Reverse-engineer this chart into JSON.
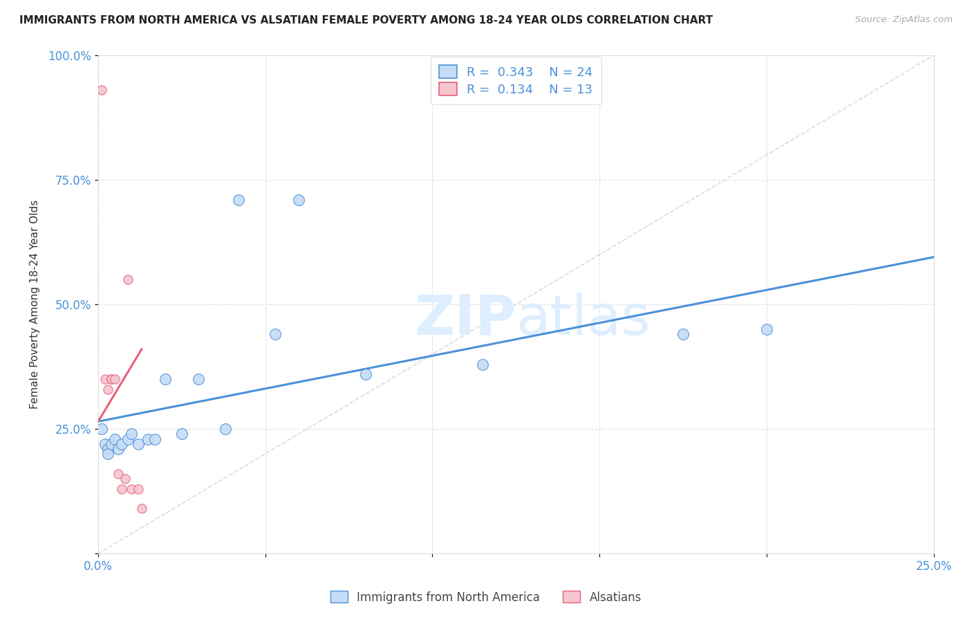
{
  "title": "IMMIGRANTS FROM NORTH AMERICA VS ALSATIAN FEMALE POVERTY AMONG 18-24 YEAR OLDS CORRELATION CHART",
  "source": "Source: ZipAtlas.com",
  "ylabel": "Female Poverty Among 18-24 Year Olds",
  "xlim": [
    0,
    0.25
  ],
  "ylim": [
    0,
    1.0
  ],
  "x_tick_vals": [
    0.0,
    0.05,
    0.1,
    0.15,
    0.2,
    0.25
  ],
  "x_tick_labels": [
    "0.0%",
    "",
    "",
    "",
    "",
    "25.0%"
  ],
  "y_tick_vals": [
    0.0,
    0.25,
    0.5,
    0.75,
    1.0
  ],
  "y_tick_labels": [
    "",
    "25.0%",
    "50.0%",
    "75.0%",
    "100.0%"
  ],
  "blue_R": 0.343,
  "blue_N": 24,
  "pink_R": 0.134,
  "pink_N": 13,
  "blue_color": "#c5dcf5",
  "pink_color": "#f5c5d0",
  "blue_line_color": "#4a90d9",
  "pink_line_color": "#e8607a",
  "diag_color": "#cccccc",
  "blue_points_x": [
    0.001,
    0.002,
    0.003,
    0.003,
    0.004,
    0.005,
    0.006,
    0.007,
    0.009,
    0.01,
    0.012,
    0.015,
    0.017,
    0.02,
    0.025,
    0.03,
    0.038,
    0.042,
    0.053,
    0.06,
    0.08,
    0.115,
    0.175,
    0.2
  ],
  "blue_points_y": [
    0.25,
    0.22,
    0.21,
    0.2,
    0.22,
    0.23,
    0.21,
    0.22,
    0.23,
    0.24,
    0.22,
    0.23,
    0.23,
    0.35,
    0.24,
    0.35,
    0.25,
    0.71,
    0.44,
    0.71,
    0.36,
    0.38,
    0.44,
    0.45
  ],
  "pink_points_x": [
    0.001,
    0.002,
    0.003,
    0.004,
    0.004,
    0.005,
    0.006,
    0.007,
    0.008,
    0.009,
    0.01,
    0.012,
    0.013
  ],
  "pink_points_y": [
    0.93,
    0.35,
    0.33,
    0.35,
    0.35,
    0.35,
    0.16,
    0.13,
    0.15,
    0.55,
    0.13,
    0.13,
    0.09
  ],
  "blue_marker_size": 130,
  "pink_marker_size": 90,
  "blue_line_x": [
    0.0,
    0.25
  ],
  "blue_line_y": [
    0.265,
    0.595
  ],
  "pink_line_x": [
    0.0,
    0.013
  ],
  "pink_line_y": [
    0.265,
    0.41
  ]
}
